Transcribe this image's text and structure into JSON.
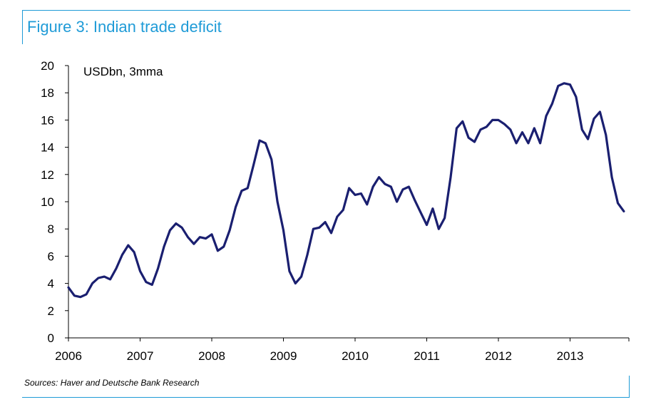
{
  "figure": {
    "title": "Figure 3:  Indian trade deficit",
    "source": "Sources: Haver and Deutsche Bank Research"
  },
  "colors": {
    "frame": "#1f9bd7",
    "line": "#1a1f70"
  },
  "chart_data": {
    "type": "line",
    "title": "Figure 3:  Indian trade deficit",
    "annotation": "USDbn, 3mma",
    "xlabel": "",
    "ylabel": "",
    "ylim": [
      0,
      20
    ],
    "yticks": [
      0,
      2,
      4,
      6,
      8,
      10,
      12,
      14,
      16,
      18,
      20
    ],
    "xticks": [
      "2006",
      "2007",
      "2008",
      "2009",
      "2010",
      "2011",
      "2012",
      "2013"
    ],
    "xlim": [
      "2006-01",
      "2013-10"
    ],
    "grid": false,
    "series": [
      {
        "x": [
          "2006-01",
          "2006-02",
          "2006-03",
          "2006-04",
          "2006-05",
          "2006-06",
          "2006-07",
          "2006-08",
          "2006-09",
          "2006-10",
          "2006-11",
          "2006-12",
          "2007-01",
          "2007-02",
          "2007-03",
          "2007-04",
          "2007-05",
          "2007-06",
          "2007-07",
          "2007-08",
          "2007-09",
          "2007-10",
          "2007-11",
          "2007-12",
          "2008-01",
          "2008-02",
          "2008-03",
          "2008-04",
          "2008-05",
          "2008-06",
          "2008-07",
          "2008-08",
          "2008-09",
          "2008-10",
          "2008-11",
          "2008-12",
          "2009-01",
          "2009-02",
          "2009-03",
          "2009-04",
          "2009-05",
          "2009-06",
          "2009-07",
          "2009-08",
          "2009-09",
          "2009-10",
          "2009-11",
          "2009-12",
          "2010-01",
          "2010-02",
          "2010-03",
          "2010-04",
          "2010-05",
          "2010-06",
          "2010-07",
          "2010-08",
          "2010-09",
          "2010-10",
          "2010-11",
          "2010-12",
          "2011-01",
          "2011-02",
          "2011-03",
          "2011-04",
          "2011-05",
          "2011-06",
          "2011-07",
          "2011-08",
          "2011-09",
          "2011-10",
          "2011-11",
          "2011-12",
          "2012-01",
          "2012-02",
          "2012-03",
          "2012-04",
          "2012-05",
          "2012-06",
          "2012-07",
          "2012-08",
          "2012-09",
          "2012-10",
          "2012-11",
          "2012-12",
          "2013-01",
          "2013-02",
          "2013-03",
          "2013-04",
          "2013-05",
          "2013-06",
          "2013-07",
          "2013-08",
          "2013-09",
          "2013-10"
        ],
        "values": [
          3.7,
          3.1,
          3.0,
          3.2,
          4.0,
          4.4,
          4.5,
          4.3,
          5.1,
          6.1,
          6.8,
          6.3,
          4.9,
          4.1,
          3.9,
          5.1,
          6.7,
          7.9,
          8.4,
          8.1,
          7.4,
          6.9,
          7.4,
          7.3,
          7.6,
          6.4,
          6.7,
          7.9,
          9.6,
          10.8,
          11.0,
          12.7,
          14.5,
          14.3,
          13.1,
          10.0,
          7.9,
          4.9,
          4.0,
          4.5,
          6.1,
          8.0,
          8.1,
          8.5,
          7.7,
          8.9,
          9.4,
          11.0,
          10.5,
          10.6,
          9.8,
          11.1,
          11.8,
          11.3,
          11.1,
          10.0,
          10.9,
          11.1,
          10.1,
          9.2,
          8.3,
          9.5,
          8.0,
          8.8,
          11.8,
          15.4,
          15.9,
          14.7,
          14.4,
          15.3,
          15.5,
          16.0,
          16.0,
          15.7,
          15.3,
          14.3,
          15.1,
          14.3,
          15.4,
          14.3,
          16.3,
          17.2,
          18.5,
          18.7,
          18.6,
          17.7,
          15.3,
          14.6,
          16.1,
          16.6,
          14.9,
          11.8,
          9.9,
          9.3
        ]
      }
    ]
  }
}
